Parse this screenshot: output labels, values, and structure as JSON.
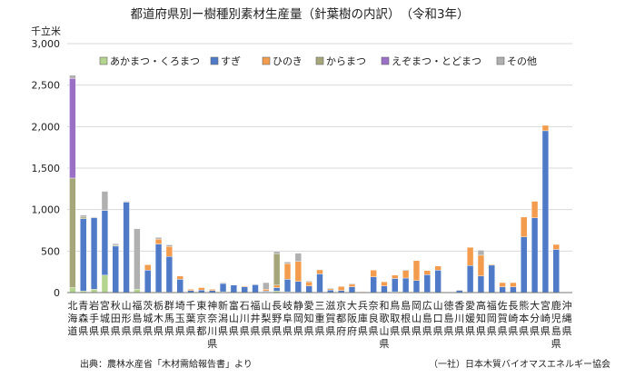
{
  "chart_data": {
    "type": "bar",
    "stacked": true,
    "title": "都道府県別ー樹種別素材生産量（針葉樹の内訳）　（令和3年）",
    "ylabel": "千立米",
    "ylim": [
      0,
      3000
    ],
    "yticks": [
      "0",
      "500",
      "1,000",
      "1,500",
      "2,000",
      "2,500",
      "3,000"
    ],
    "grid": true,
    "legend_position": "top",
    "source": "出典：農林水産省「木材需給報告書」より",
    "credit": "（一社）日本木質バイオマスエネルギー協会",
    "categories": [
      "北海道",
      "青森県",
      "岩手県",
      "宮城県",
      "秋田県",
      "山形県",
      "福島県",
      "茨城県",
      "栃木県",
      "群馬県",
      "埼玉県",
      "千葉県",
      "東京都",
      "神奈川県",
      "新潟県",
      "富山県",
      "石川県",
      "福井県",
      "山梨県",
      "長野県",
      "岐阜県",
      "静岡県",
      "愛知県",
      "三重県",
      "滋賀県",
      "京都府",
      "大阪府",
      "兵庫県",
      "奈良県",
      "和歌山県",
      "鳥取県",
      "島根県",
      "岡山県",
      "広島県",
      "山口県",
      "徳島県",
      "香川県",
      "愛媛県",
      "高知県",
      "福岡県",
      "佐賀県",
      "長崎県",
      "熊本県",
      "大分県",
      "宮崎県",
      "鹿児島県",
      "沖縄県"
    ],
    "series": [
      {
        "name": "あかまつ・くろまつ",
        "color": "#b5d48f",
        "values": [
          60,
          20,
          40,
          210,
          0,
          0,
          40,
          0,
          5,
          5,
          0,
          0,
          0,
          0,
          10,
          0,
          0,
          0,
          10,
          20,
          10,
          5,
          0,
          5,
          0,
          0,
          0,
          5,
          0,
          0,
          10,
          5,
          5,
          5,
          0,
          0,
          0,
          5,
          0,
          0,
          0,
          0,
          0,
          0,
          0,
          0,
          0
        ]
      },
      {
        "name": "すぎ",
        "color": "#4e7ac7",
        "values": [
          0,
          870,
          860,
          780,
          560,
          1090,
          0,
          270,
          580,
          430,
          160,
          25,
          30,
          25,
          100,
          90,
          70,
          95,
          10,
          40,
          150,
          130,
          80,
          220,
          30,
          25,
          70,
          2,
          190,
          80,
          160,
          170,
          140,
          210,
          270,
          2,
          30,
          320,
          200,
          330,
          70,
          70,
          670,
          900,
          1950,
          520,
          0
        ]
      },
      {
        "name": "ひのき",
        "color": "#f39c4d",
        "values": [
          0,
          0,
          0,
          0,
          0,
          0,
          0,
          65,
          60,
          120,
          40,
          15,
          30,
          15,
          5,
          0,
          10,
          5,
          20,
          30,
          190,
          240,
          50,
          50,
          15,
          50,
          30,
          5,
          80,
          50,
          40,
          90,
          240,
          50,
          50,
          2,
          2,
          220,
          250,
          10,
          50,
          50,
          240,
          200,
          65,
          60,
          0
        ]
      },
      {
        "name": "からまつ",
        "color": "#a5a77a",
        "values": [
          1320,
          20,
          0,
          0,
          10,
          0,
          0,
          0,
          0,
          0,
          0,
          0,
          0,
          0,
          0,
          0,
          0,
          0,
          0,
          380,
          0,
          0,
          0,
          0,
          0,
          0,
          0,
          0,
          0,
          0,
          0,
          0,
          0,
          0,
          0,
          0,
          0,
          0,
          0,
          0,
          0,
          0,
          0,
          0,
          0,
          0,
          0
        ]
      },
      {
        "name": "えぞまつ・とどまつ",
        "color": "#9a6fc6",
        "values": [
          1200,
          0,
          0,
          0,
          0,
          0,
          0,
          0,
          0,
          0,
          0,
          0,
          0,
          0,
          0,
          0,
          0,
          0,
          0,
          0,
          0,
          0,
          0,
          0,
          0,
          0,
          0,
          0,
          0,
          0,
          0,
          0,
          0,
          0,
          0,
          0,
          0,
          0,
          0,
          0,
          0,
          0,
          0,
          0,
          0,
          0,
          0
        ]
      },
      {
        "name": "その他",
        "color": "#b0b0b0",
        "values": [
          40,
          25,
          10,
          230,
          20,
          10,
          730,
          0,
          20,
          20,
          0,
          0,
          0,
          0,
          10,
          0,
          0,
          5,
          80,
          25,
          20,
          100,
          10,
          5,
          10,
          5,
          10,
          0,
          0,
          0,
          0,
          10,
          0,
          0,
          0,
          0,
          0,
          0,
          60,
          0,
          0,
          0,
          0,
          0,
          0,
          0,
          0
        ]
      }
    ]
  }
}
